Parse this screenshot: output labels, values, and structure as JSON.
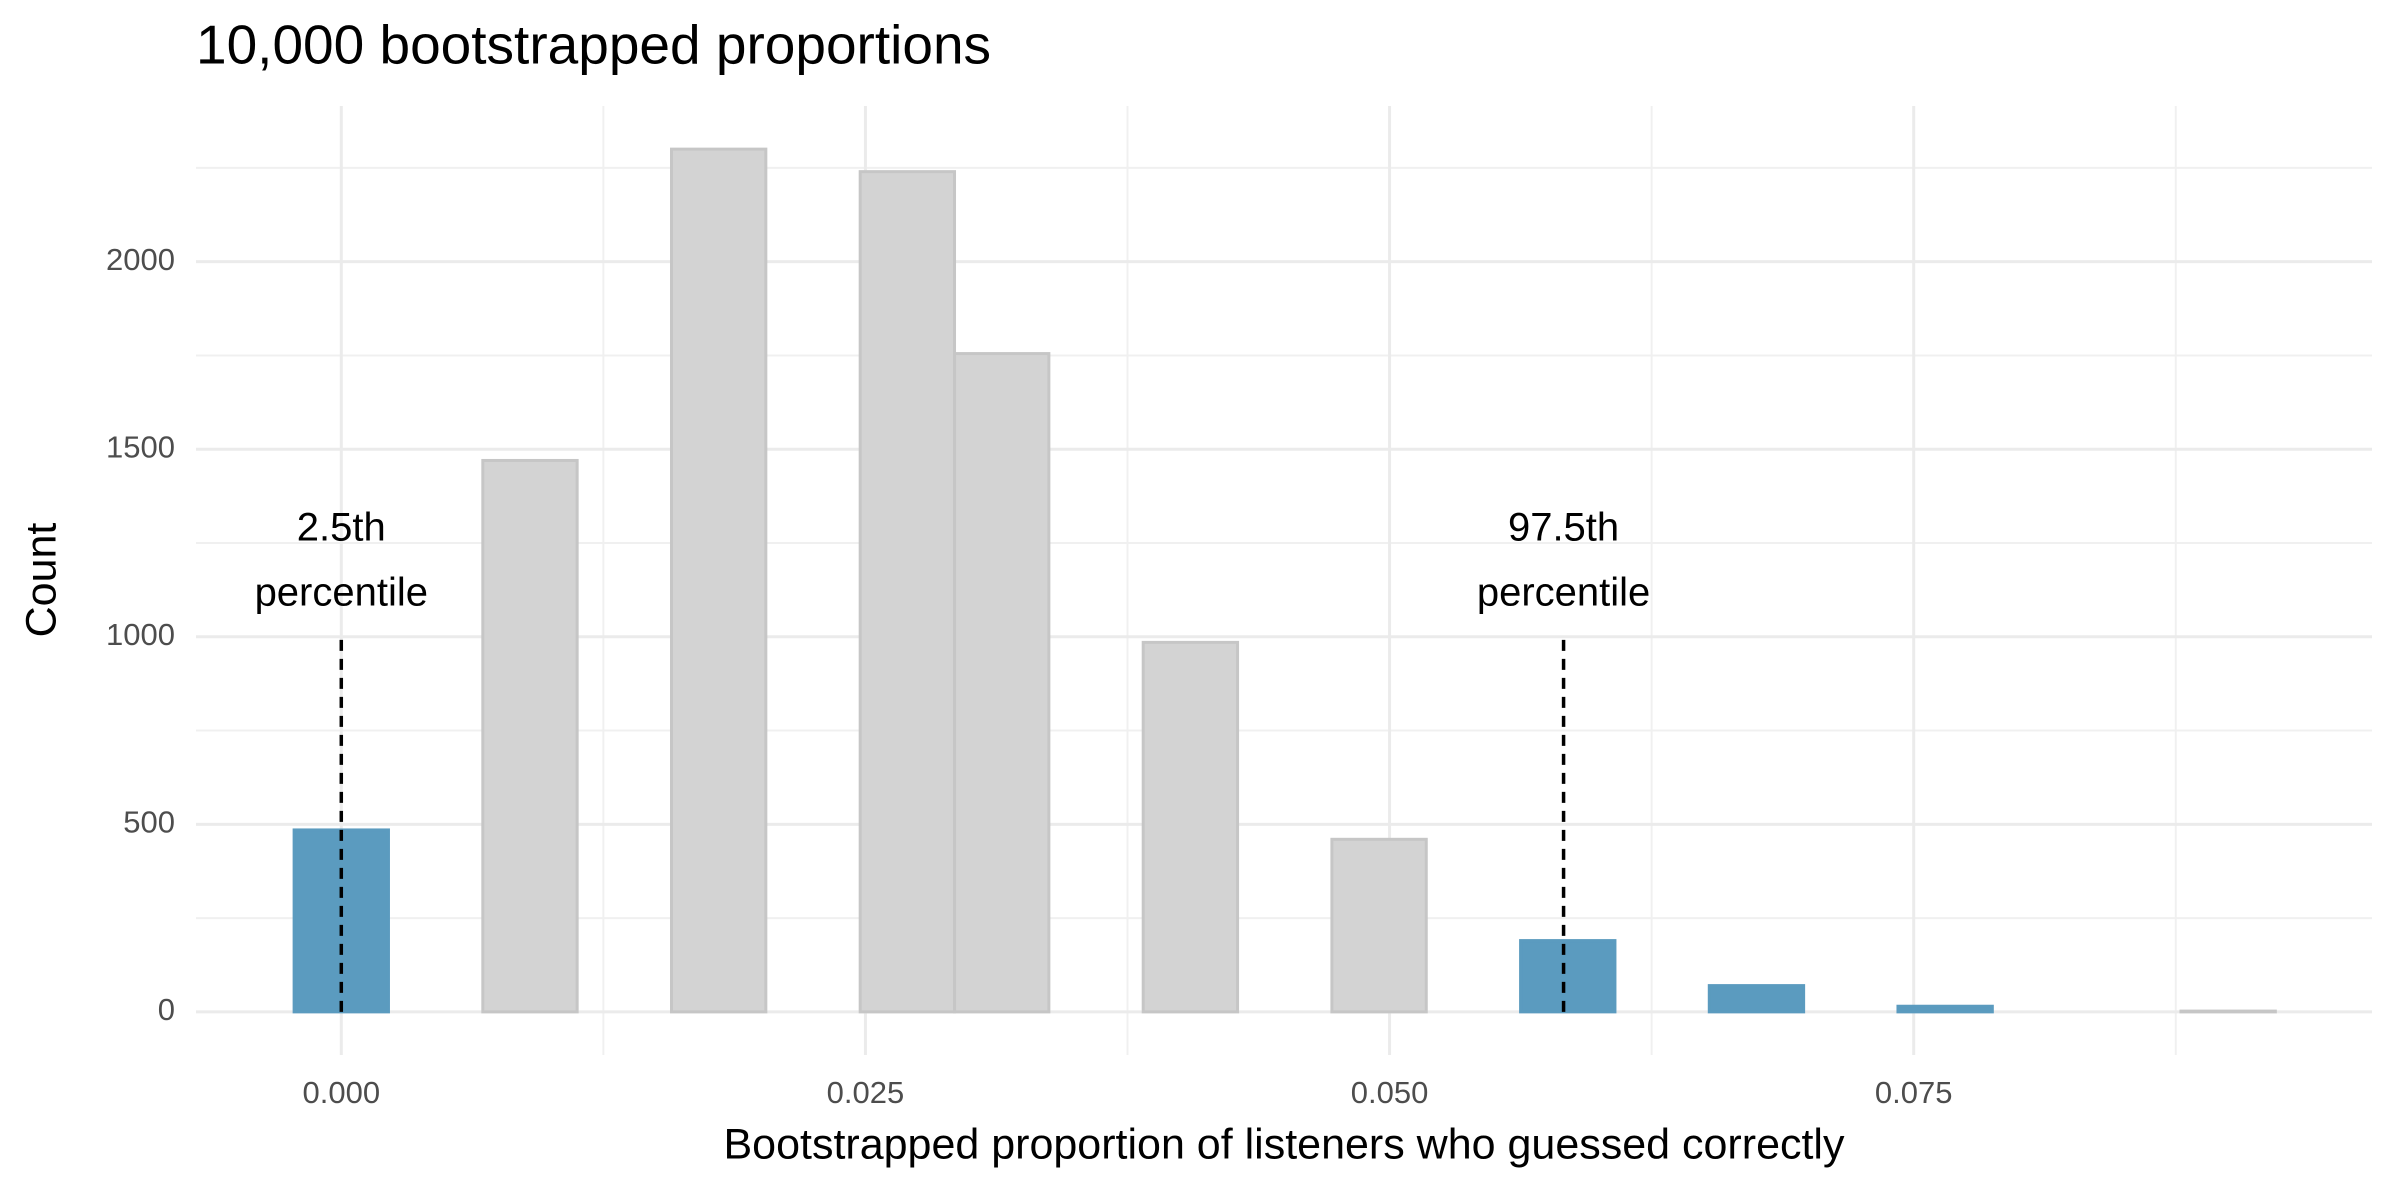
{
  "chart_data": {
    "type": "histogram",
    "title": "10,000 bootstrapped proportions",
    "x_label": "Bootstrapped proportion of listeners who guessed correctly",
    "y_label": "Count",
    "bins": [
      -0.00225,
      0.00225,
      0.00675,
      0.01125,
      0.01575,
      0.02025,
      0.02475,
      0.02925,
      0.03375,
      0.03825,
      0.04275,
      0.04725,
      0.05175,
      0.05625,
      0.06075,
      0.06525,
      0.06975,
      0.07425,
      0.07875,
      0.08325,
      0.08775,
      0.09225
    ],
    "values": [
      485,
      0,
      1470,
      0,
      2300,
      0,
      2240,
      1755,
      0,
      985,
      0,
      460,
      0,
      190,
      0,
      70,
      0,
      15,
      0,
      0,
      2
    ],
    "colors": [
      "#5b9bbf",
      "#d3d3d3",
      "#d3d3d3",
      "#d3d3d3",
      "#d3d3d3",
      "#d3d3d3",
      "#d3d3d3",
      "#d3d3d3",
      "#d3d3d3",
      "#d3d3d3",
      "#d3d3d3",
      "#d3d3d3",
      "#d3d3d3",
      "#5b9bbf",
      "#5b9bbf",
      "#5b9bbf",
      "#5b9bbf",
      "#5b9bbf",
      "#d3d3d3",
      "#d3d3d3",
      "#d3d3d3"
    ],
    "xlim": [
      -0.00693,
      0.09686
    ],
    "ylim": [
      -115,
      2415
    ],
    "xticks": [
      {
        "value": 0,
        "label": "0.000"
      },
      {
        "value": 0.025,
        "label": "0.025"
      },
      {
        "value": 0.05,
        "label": "0.050"
      },
      {
        "value": 0.075,
        "label": "0.075"
      }
    ],
    "yticks": [
      0,
      500,
      1000,
      1500,
      2000
    ],
    "x_minor_grid": [
      0.0125,
      0.0375,
      0.0625,
      0.0875
    ],
    "y_minor_grid": [
      250,
      750,
      1250,
      1750,
      2250
    ],
    "grid": true,
    "annotations": [
      {
        "x": 0,
        "lines": [
          "2.5th",
          "percentile"
        ]
      },
      {
        "x": 0.0583,
        "lines": [
          "97.5th",
          "percentile"
        ]
      }
    ]
  }
}
